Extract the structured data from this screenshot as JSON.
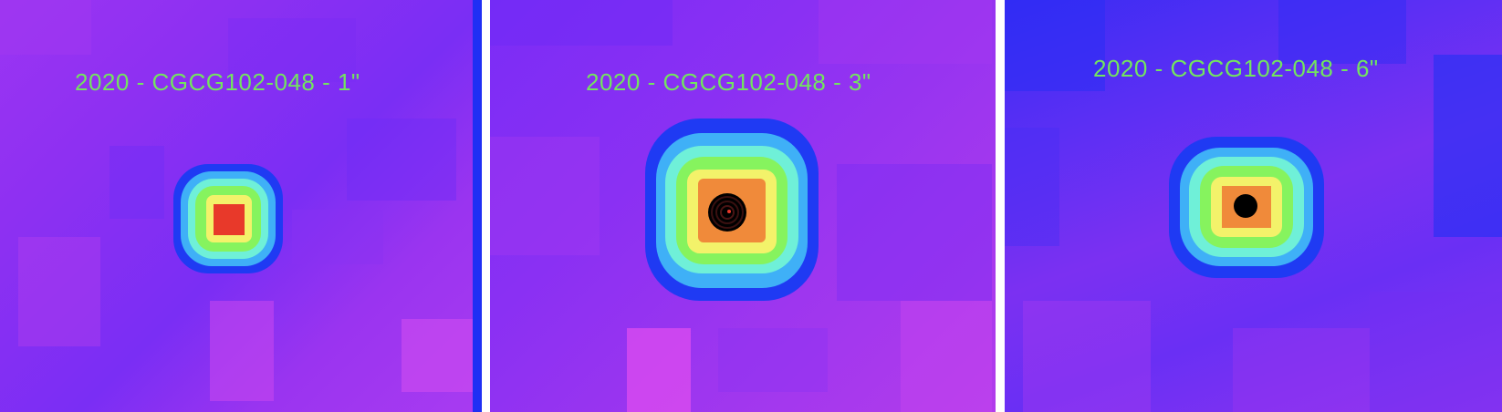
{
  "panels": [
    {
      "label": "2020 - CGCG102-048 - 1\""
    },
    {
      "label": "2020 - CGCG102-048 - 3\""
    },
    {
      "label": "2020 - CGCG102-048 - 6\""
    }
  ],
  "colors": {
    "label_text": "#73e45f",
    "background_purple": "#8e30f2",
    "core_red": "#e8392a",
    "ring_orange": "#f08a3a",
    "ring_yellow": "#f3f26a",
    "ring_green": "#86f35e",
    "ring_cyan": "#6ff0d8",
    "ring_lightblue": "#3fb0f7",
    "ring_blue": "#1f3af3",
    "core_black": "#000000"
  }
}
